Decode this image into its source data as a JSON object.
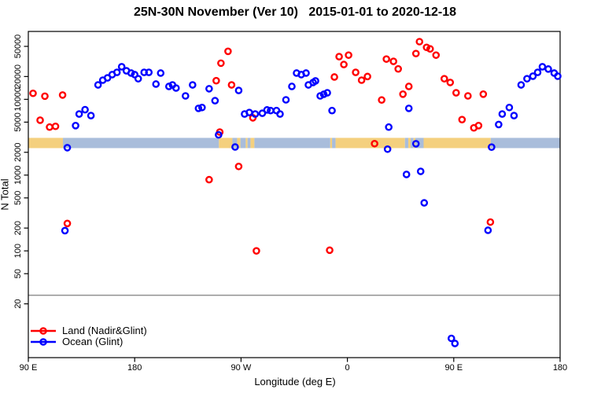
{
  "chart_data": {
    "type": "scatter",
    "title": "25N-30N November (Ver 10)   2015-01-01 to 2020-12-18",
    "xlabel": "Longitude (deg E)",
    "ylabel": "N Total",
    "y_scale": "log10",
    "grid": false,
    "xlim": [
      90,
      540
    ],
    "ylim": [
      3.9,
      78700
    ],
    "x_ticks": [
      {
        "lon": 90,
        "label": "90 E"
      },
      {
        "lon": 180,
        "label": "180"
      },
      {
        "lon": 270,
        "label": "90 W"
      },
      {
        "lon": 360,
        "label": "0"
      },
      {
        "lon": 450,
        "label": "90 E"
      },
      {
        "lon": 540,
        "label": "180"
      }
    ],
    "y_ticks": [
      20,
      50,
      100,
      200,
      500,
      1000,
      2000,
      5000,
      10000,
      20000,
      50000
    ],
    "threshold_line_value": 26,
    "colors": {
      "land": "#FF0000",
      "ocean": "#0000FF",
      "band_land": "#F4D07E",
      "band_ocean": "#A9BDDB",
      "threshold": "#909090",
      "frame": "#000000"
    },
    "band": {
      "description": "surface-type (land/ocean) longitude band",
      "value_top": 3100,
      "value_bottom": 2270,
      "segments": [
        {
          "from": 90,
          "to": 119.3,
          "surface": "land"
        },
        {
          "from": 119.3,
          "to": 251.3,
          "surface": "ocean"
        },
        {
          "from": 251.3,
          "to": 262.7,
          "surface": "land"
        },
        {
          "from": 262.7,
          "to": 266.7,
          "surface": "ocean"
        },
        {
          "from": 266.7,
          "to": 269.5,
          "surface": "land"
        },
        {
          "from": 269.5,
          "to": 274.0,
          "surface": "ocean"
        },
        {
          "from": 274.0,
          "to": 275.5,
          "surface": "land"
        },
        {
          "from": 275.5,
          "to": 278.0,
          "surface": "ocean"
        },
        {
          "from": 278.0,
          "to": 281.3,
          "surface": "land"
        },
        {
          "from": 281.3,
          "to": 345.5,
          "surface": "ocean"
        },
        {
          "from": 345.5,
          "to": 347.0,
          "surface": "land"
        },
        {
          "from": 347.0,
          "to": 350.0,
          "surface": "ocean"
        },
        {
          "from": 350.0,
          "to": 408.7,
          "surface": "land"
        },
        {
          "from": 408.7,
          "to": 411.5,
          "surface": "ocean"
        },
        {
          "from": 411.5,
          "to": 413.5,
          "surface": "land"
        },
        {
          "from": 413.5,
          "to": 416.0,
          "surface": "ocean"
        },
        {
          "from": 416.0,
          "to": 417.5,
          "surface": "land"
        },
        {
          "from": 417.5,
          "to": 424.5,
          "surface": "ocean"
        },
        {
          "from": 424.5,
          "to": 481.3,
          "surface": "land"
        },
        {
          "from": 481.3,
          "to": 540.0,
          "surface": "ocean"
        }
      ]
    },
    "legend": {
      "position": "bottom-left"
    },
    "series": [
      {
        "name": "Land (Nadir&Glint)",
        "surface": "land",
        "points": [
          [
            94,
            12000
          ],
          [
            100,
            5300
          ],
          [
            104,
            11000
          ],
          [
            108,
            4300
          ],
          [
            113,
            4400
          ],
          [
            119,
            11400
          ],
          [
            123,
            230
          ],
          [
            243,
            870
          ],
          [
            249,
            17600
          ],
          [
            252,
            3700
          ],
          [
            253,
            30000
          ],
          [
            259,
            43000
          ],
          [
            262,
            15500
          ],
          [
            268,
            1300
          ],
          [
            280,
            5700
          ],
          [
            283,
            100
          ],
          [
            345,
            102
          ],
          [
            349,
            19700
          ],
          [
            353,
            36600
          ],
          [
            357,
            28800
          ],
          [
            361,
            38300
          ],
          [
            367,
            22700
          ],
          [
            372,
            17900
          ],
          [
            377,
            20000
          ],
          [
            383,
            2600
          ],
          [
            389,
            9800
          ],
          [
            393,
            34000
          ],
          [
            399,
            31700
          ],
          [
            403,
            25200
          ],
          [
            407,
            11700
          ],
          [
            412,
            14800
          ],
          [
            418,
            40200
          ],
          [
            421,
            57700
          ],
          [
            427,
            48500
          ],
          [
            430,
            46300
          ],
          [
            435,
            38300
          ],
          [
            442,
            18700
          ],
          [
            447,
            16700
          ],
          [
            452,
            12200
          ],
          [
            457,
            5400
          ],
          [
            462,
            11100
          ],
          [
            467,
            4200
          ],
          [
            471,
            4500
          ],
          [
            475,
            11700
          ],
          [
            481,
            240
          ]
        ]
      },
      {
        "name": "Ocean (Glint)",
        "surface": "ocean",
        "points": [
          [
            121,
            185
          ],
          [
            123,
            2300
          ],
          [
            130,
            4500
          ],
          [
            133,
            6400
          ],
          [
            138,
            7300
          ],
          [
            143,
            6100
          ],
          [
            149,
            15500
          ],
          [
            153,
            17900
          ],
          [
            157,
            19200
          ],
          [
            161,
            21200
          ],
          [
            165,
            22700
          ],
          [
            169,
            26900
          ],
          [
            173,
            23800
          ],
          [
            177,
            22200
          ],
          [
            180,
            21200
          ],
          [
            183,
            18700
          ],
          [
            188,
            22700
          ],
          [
            192,
            22700
          ],
          [
            198,
            15900
          ],
          [
            202,
            22200
          ],
          [
            209,
            14800
          ],
          [
            212,
            15500
          ],
          [
            215,
            14100
          ],
          [
            223,
            11100
          ],
          [
            229,
            15500
          ],
          [
            234,
            7600
          ],
          [
            237,
            7800
          ],
          [
            243,
            13800
          ],
          [
            248,
            9600
          ],
          [
            251,
            3400
          ],
          [
            265,
            2350
          ],
          [
            268,
            13100
          ],
          [
            273,
            6400
          ],
          [
            277,
            6700
          ],
          [
            282,
            6400
          ],
          [
            288,
            6550
          ],
          [
            292,
            7250
          ],
          [
            295,
            7100
          ],
          [
            300,
            7100
          ],
          [
            303,
            6400
          ],
          [
            308,
            9850
          ],
          [
            313,
            14800
          ],
          [
            317,
            22200
          ],
          [
            321,
            21200
          ],
          [
            325,
            22200
          ],
          [
            327,
            15500
          ],
          [
            331,
            16700
          ],
          [
            333,
            17500
          ],
          [
            337,
            11100
          ],
          [
            340,
            11650
          ],
          [
            343,
            12200
          ],
          [
            347,
            7100
          ],
          [
            394,
            2200
          ],
          [
            395,
            4300
          ],
          [
            410,
            1020
          ],
          [
            412,
            7600
          ],
          [
            418,
            2590
          ],
          [
            422,
            1120
          ],
          [
            425,
            430
          ],
          [
            448,
            7
          ],
          [
            451,
            6
          ],
          [
            479,
            187
          ],
          [
            482,
            2340
          ],
          [
            488,
            4650
          ],
          [
            491,
            6400
          ],
          [
            497,
            7800
          ],
          [
            501,
            6100
          ],
          [
            507,
            15500
          ],
          [
            512,
            18700
          ],
          [
            517,
            20200
          ],
          [
            521,
            22700
          ],
          [
            525,
            26900
          ],
          [
            530,
            25100
          ],
          [
            535,
            22200
          ],
          [
            538,
            20200
          ]
        ]
      }
    ]
  }
}
